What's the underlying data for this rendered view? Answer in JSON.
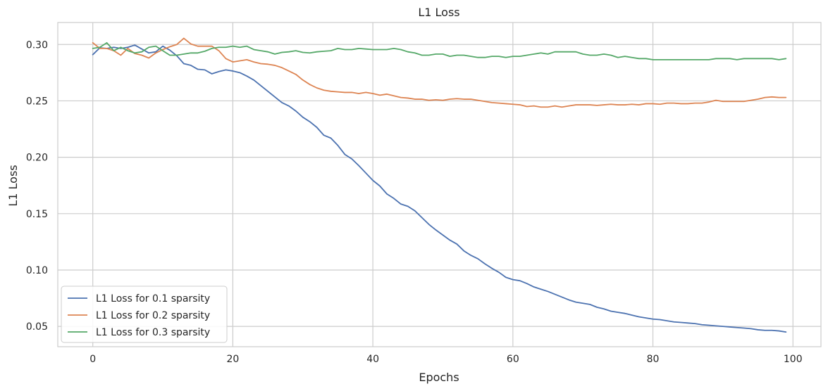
{
  "chart_data": {
    "type": "line",
    "title": "L1 Loss",
    "xlabel": "Epochs",
    "ylabel": "L1 Loss",
    "xlim": [
      -5,
      104
    ],
    "ylim": [
      0.032,
      0.3195
    ],
    "xticks": [
      0,
      20,
      40,
      60,
      80,
      100
    ],
    "yticks": [
      0.05,
      0.1,
      0.15,
      0.2,
      0.25,
      0.3
    ],
    "ytick_labels": [
      "0.05",
      "0.10",
      "0.15",
      "0.20",
      "0.25",
      "0.30"
    ],
    "grid": true,
    "legend_position": "bottom-left",
    "x": [
      0,
      1,
      2,
      3,
      4,
      5,
      6,
      7,
      8,
      9,
      10,
      11,
      12,
      13,
      14,
      15,
      16,
      17,
      18,
      19,
      20,
      21,
      22,
      23,
      24,
      25,
      26,
      27,
      28,
      29,
      30,
      31,
      32,
      33,
      34,
      35,
      36,
      37,
      38,
      39,
      40,
      41,
      42,
      43,
      44,
      45,
      46,
      47,
      48,
      49,
      50,
      51,
      52,
      53,
      54,
      55,
      56,
      57,
      58,
      59,
      60,
      61,
      62,
      63,
      64,
      65,
      66,
      67,
      68,
      69,
      70,
      71,
      72,
      73,
      74,
      75,
      76,
      77,
      78,
      79,
      80,
      81,
      82,
      83,
      84,
      85,
      86,
      87,
      88,
      89,
      90,
      91,
      92,
      93,
      94,
      95,
      96,
      97,
      98,
      99
    ],
    "series": [
      {
        "name": "L1 Loss for 0.1 sparsity",
        "color": "#4c72b0",
        "values": [
          0.291,
          0.297,
          0.2965,
          0.2975,
          0.2965,
          0.2975,
          0.2995,
          0.296,
          0.2925,
          0.2935,
          0.2985,
          0.295,
          0.29,
          0.283,
          0.2815,
          0.278,
          0.2775,
          0.274,
          0.276,
          0.2775,
          0.2765,
          0.275,
          0.272,
          0.2685,
          0.2635,
          0.2585,
          0.2535,
          0.2485,
          0.2455,
          0.241,
          0.2355,
          0.2315,
          0.2265,
          0.2195,
          0.217,
          0.2105,
          0.2025,
          0.1985,
          0.1925,
          0.186,
          0.1795,
          0.1745,
          0.1675,
          0.1635,
          0.1585,
          0.1565,
          0.1525,
          0.1465,
          0.1405,
          0.1355,
          0.131,
          0.1265,
          0.123,
          0.117,
          0.113,
          0.11,
          0.1055,
          0.1015,
          0.098,
          0.0935,
          0.0915,
          0.0905,
          0.088,
          0.085,
          0.083,
          0.081,
          0.0785,
          0.076,
          0.0735,
          0.0715,
          0.0705,
          0.0695,
          0.067,
          0.0655,
          0.0635,
          0.0625,
          0.0615,
          0.06,
          0.0585,
          0.0575,
          0.0565,
          0.056,
          0.055,
          0.054,
          0.0535,
          0.053,
          0.0525,
          0.0515,
          0.051,
          0.0505,
          0.05,
          0.0495,
          0.049,
          0.0485,
          0.048,
          0.047,
          0.0465,
          0.0465,
          0.046,
          0.045
        ]
      },
      {
        "name": "L1 Loss for 0.2 sparsity",
        "color": "#dd8452",
        "values": [
          0.3015,
          0.2965,
          0.2965,
          0.2945,
          0.2905,
          0.2965,
          0.292,
          0.2905,
          0.288,
          0.2925,
          0.2955,
          0.298,
          0.3,
          0.3055,
          0.3005,
          0.2985,
          0.2985,
          0.2985,
          0.2945,
          0.2875,
          0.2845,
          0.2855,
          0.2865,
          0.2845,
          0.283,
          0.2825,
          0.2815,
          0.2795,
          0.2765,
          0.2735,
          0.2685,
          0.2645,
          0.2615,
          0.2595,
          0.2585,
          0.258,
          0.2575,
          0.2575,
          0.2565,
          0.2575,
          0.2565,
          0.255,
          0.256,
          0.2545,
          0.253,
          0.2525,
          0.2515,
          0.2515,
          0.2505,
          0.251,
          0.2505,
          0.2515,
          0.252,
          0.2515,
          0.2515,
          0.2505,
          0.2495,
          0.2485,
          0.248,
          0.2475,
          0.247,
          0.2465,
          0.245,
          0.2455,
          0.2445,
          0.2445,
          0.2455,
          0.2445,
          0.2455,
          0.2465,
          0.2465,
          0.2465,
          0.246,
          0.2465,
          0.247,
          0.2465,
          0.2465,
          0.247,
          0.2465,
          0.2475,
          0.2475,
          0.247,
          0.248,
          0.248,
          0.2475,
          0.2475,
          0.248,
          0.248,
          0.249,
          0.2505,
          0.2495,
          0.2495,
          0.2495,
          0.2495,
          0.2505,
          0.2515,
          0.253,
          0.2535,
          0.253,
          0.253
        ]
      },
      {
        "name": "L1 Loss for 0.3 sparsity",
        "color": "#55a868",
        "values": [
          0.2965,
          0.2975,
          0.3015,
          0.2945,
          0.2975,
          0.2945,
          0.2925,
          0.2935,
          0.2975,
          0.2985,
          0.2945,
          0.2905,
          0.2905,
          0.2915,
          0.2925,
          0.2925,
          0.294,
          0.2965,
          0.2975,
          0.2975,
          0.2985,
          0.2975,
          0.2985,
          0.2955,
          0.2945,
          0.2935,
          0.2915,
          0.293,
          0.2935,
          0.2945,
          0.293,
          0.2925,
          0.2935,
          0.294,
          0.2945,
          0.2965,
          0.2955,
          0.2955,
          0.2965,
          0.296,
          0.2955,
          0.2955,
          0.2955,
          0.2965,
          0.2955,
          0.2935,
          0.2925,
          0.2905,
          0.2905,
          0.2915,
          0.2915,
          0.2895,
          0.2905,
          0.2905,
          0.2895,
          0.2885,
          0.2885,
          0.2895,
          0.2895,
          0.2885,
          0.2895,
          0.2895,
          0.2905,
          0.2915,
          0.2925,
          0.2915,
          0.2935,
          0.2935,
          0.2935,
          0.2935,
          0.2915,
          0.2905,
          0.2905,
          0.2915,
          0.2905,
          0.2885,
          0.2895,
          0.2885,
          0.2875,
          0.2875,
          0.2865,
          0.2865,
          0.2865,
          0.2865,
          0.2865,
          0.2865,
          0.2865,
          0.2865,
          0.2865,
          0.2875,
          0.2875,
          0.2875,
          0.2865,
          0.2875,
          0.2875,
          0.2875,
          0.2875,
          0.2875,
          0.2865,
          0.2875
        ]
      }
    ]
  }
}
